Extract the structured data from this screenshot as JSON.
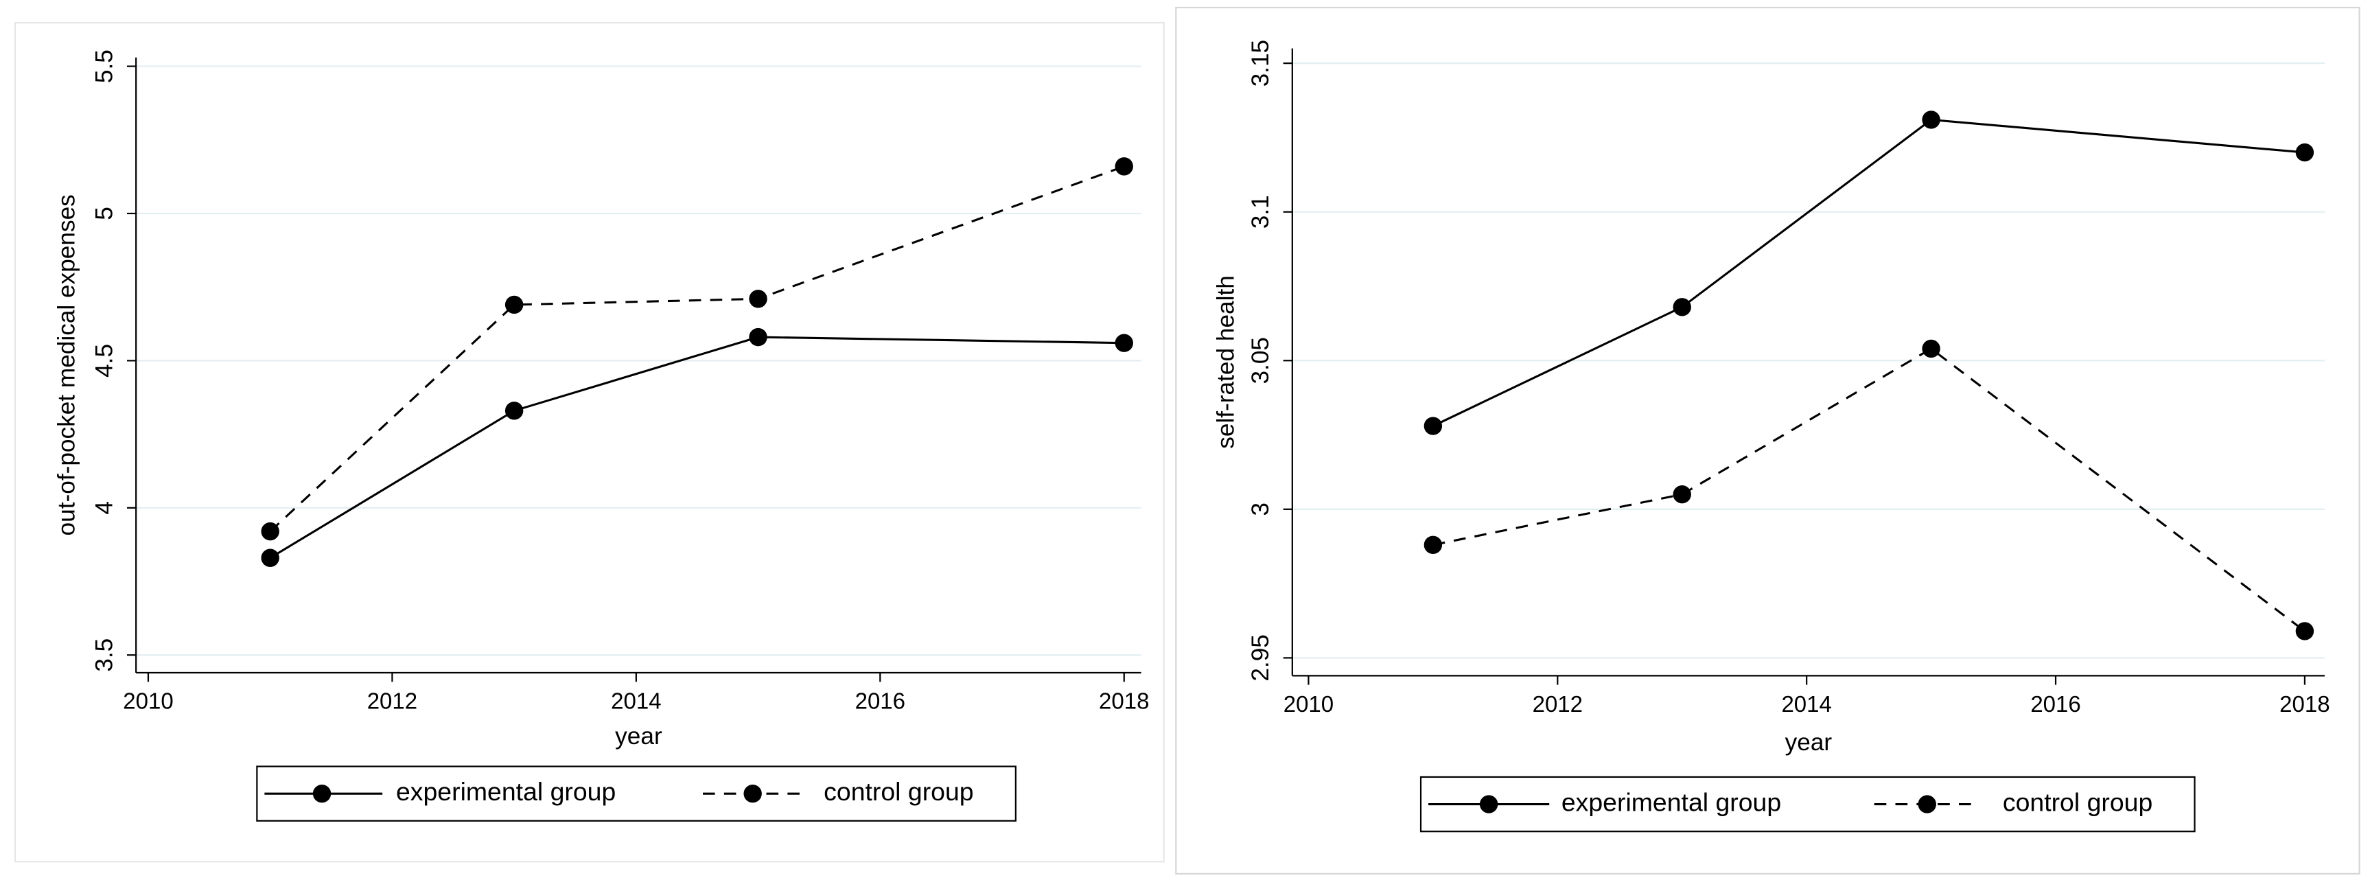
{
  "chart_data": [
    {
      "type": "line",
      "x_label": "year",
      "y_label": "out-of-pocket medical expenses",
      "x": [
        2011,
        2013,
        2015,
        2018
      ],
      "series": [
        {
          "name": "experimental group",
          "color": "#000000",
          "dash": "solid",
          "values": [
            3.83,
            4.33,
            4.58,
            4.56
          ]
        },
        {
          "name": "control group",
          "color": "#000000",
          "dash": "dashed",
          "values": [
            3.92,
            4.69,
            4.71,
            5.16
          ]
        }
      ],
      "xlim": [
        2009.9,
        2018.14
      ],
      "xticks": [
        2010,
        2012,
        2014,
        2016,
        2018
      ],
      "ylim": [
        3.44,
        5.53
      ],
      "yticks": [
        3.5,
        4,
        4.5,
        5,
        5.5
      ],
      "grid": true,
      "legend": "bottom"
    },
    {
      "type": "line",
      "x_label": "year",
      "y_label": "self-rated health",
      "x": [
        2011,
        2013,
        2015,
        2018
      ],
      "series": [
        {
          "name": "experimental group",
          "color": "#000000",
          "dash": "solid",
          "values": [
            3.028,
            3.068,
            3.131,
            3.12
          ]
        },
        {
          "name": "control group",
          "color": "#000000",
          "dash": "dashed",
          "values": [
            2.988,
            3.005,
            3.054,
            2.959
          ]
        }
      ],
      "xlim": [
        2009.87,
        2018.16
      ],
      "xticks": [
        2010,
        2012,
        2014,
        2016,
        2018
      ],
      "ylim": [
        2.944,
        3.155
      ],
      "yticks": [
        2.95,
        3,
        3.05,
        3.1,
        3.15
      ],
      "grid": true,
      "legend": "bottom"
    }
  ]
}
